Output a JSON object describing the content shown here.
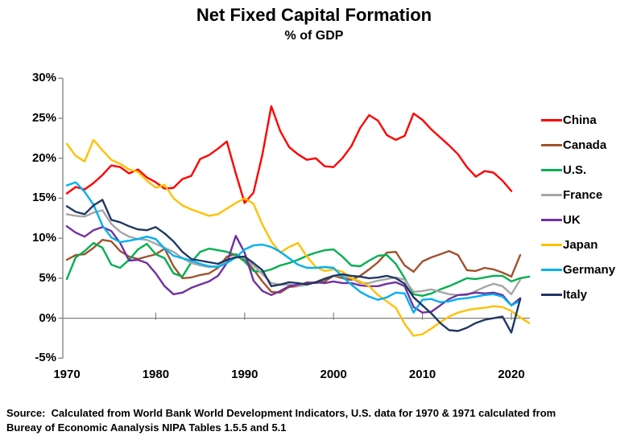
{
  "chart_data": {
    "type": "line",
    "title": "Net Fixed Capital Formation",
    "subtitle": "% of GDP",
    "legend_position": "right",
    "grid": "zero-line-only",
    "axis_color": "#808080",
    "x_axis": {
      "tick_labels": [
        "1970",
        "1980",
        "1990",
        "2000",
        "2010",
        "2020"
      ],
      "tick_years": [
        1970,
        1980,
        1990,
        2000,
        2010,
        2020
      ],
      "range_years": [
        1970,
        2022
      ]
    },
    "y_axis": {
      "tick_labels": [
        "30%",
        "25%",
        "20%",
        "15%",
        "10%",
        "5%",
        "0%",
        "-5%"
      ],
      "tick_values": [
        30,
        25,
        20,
        15,
        10,
        5,
        0,
        -5
      ],
      "range": [
        -5,
        30
      ],
      "unit": "percent"
    },
    "series": [
      {
        "name": "China",
        "key": "china",
        "color": "#FF0000",
        "start_year": 1970,
        "values": [
          15.6,
          16.4,
          16.1,
          16.9,
          17.9,
          19.1,
          18.9,
          18.1,
          18.6,
          17.6,
          17.0,
          16.2,
          16.3,
          17.4,
          17.8,
          19.9,
          20.4,
          21.2,
          22.1,
          18.1,
          14.4,
          15.7,
          20.5,
          26.5,
          23.4,
          21.4,
          20.5,
          19.8,
          20.0,
          19.0,
          18.9,
          20.0,
          21.5,
          23.8,
          25.4,
          24.7,
          22.9,
          22.3,
          22.8,
          25.6,
          24.8,
          23.6,
          22.6,
          21.6,
          20.5,
          18.9,
          17.7,
          18.4,
          18.2,
          17.2,
          15.9
        ]
      },
      {
        "name": "Canada",
        "key": "canada",
        "color": "#A0522D",
        "start_year": 1970,
        "values": [
          7.3,
          7.9,
          8.0,
          8.8,
          9.8,
          9.6,
          8.4,
          7.7,
          7.4,
          7.7,
          8.0,
          8.7,
          6.5,
          5.0,
          5.1,
          5.4,
          5.6,
          6.3,
          7.7,
          8.0,
          7.4,
          6.1,
          4.6,
          3.3,
          3.2,
          3.9,
          4.0,
          4.5,
          4.4,
          4.6,
          5.3,
          5.0,
          4.8,
          5.3,
          6.1,
          7.0,
          8.2,
          8.3,
          6.6,
          5.8,
          7.1,
          7.6,
          8.0,
          8.4,
          7.9,
          6.0,
          5.9,
          6.3,
          6.1,
          5.7,
          5.2,
          7.9
        ]
      },
      {
        "name": "U.S.",
        "key": "us",
        "color": "#00B050",
        "start_year": 1970,
        "values": [
          4.9,
          7.6,
          8.4,
          9.4,
          8.8,
          6.7,
          6.3,
          7.3,
          8.6,
          9.3,
          8.0,
          7.5,
          5.6,
          5.2,
          7.0,
          8.3,
          8.7,
          8.5,
          8.3,
          7.9,
          7.1,
          5.9,
          5.8,
          6.1,
          6.6,
          6.9,
          7.3,
          7.8,
          8.2,
          8.5,
          8.6,
          7.7,
          6.6,
          6.5,
          7.2,
          7.8,
          7.9,
          6.8,
          5.0,
          3.0,
          2.8,
          3.1,
          3.6,
          4.0,
          4.5,
          5.0,
          4.9,
          5.1,
          5.3,
          5.3,
          4.6,
          5.0,
          5.2
        ]
      },
      {
        "name": "France",
        "key": "france",
        "color": "#A6A6A6",
        "start_year": 1970,
        "values": [
          13.0,
          12.8,
          12.7,
          13.2,
          13.5,
          11.8,
          10.8,
          10.2,
          9.9,
          9.8,
          9.3,
          8.8,
          8.3,
          7.5,
          6.9,
          6.6,
          6.4,
          6.5,
          7.2,
          7.7,
          7.5,
          6.6,
          5.5,
          4.4,
          4.2,
          4.2,
          4.0,
          4.2,
          4.5,
          5.0,
          5.3,
          5.3,
          5.0,
          4.4,
          4.4,
          4.7,
          4.9,
          5.1,
          4.8,
          3.3,
          3.4,
          3.6,
          3.3,
          3.0,
          2.9,
          2.9,
          3.4,
          3.9,
          4.3,
          4.0,
          3.0,
          4.8
        ]
      },
      {
        "name": "UK",
        "key": "uk",
        "color": "#7030A0",
        "start_year": 1970,
        "values": [
          11.5,
          10.7,
          10.2,
          11.0,
          11.4,
          10.9,
          9.4,
          7.2,
          7.3,
          6.9,
          5.6,
          4.0,
          3.0,
          3.2,
          3.8,
          4.2,
          4.6,
          5.3,
          6.9,
          10.3,
          8.2,
          4.7,
          3.4,
          2.9,
          3.4,
          4.0,
          4.2,
          4.4,
          4.5,
          4.4,
          4.6,
          4.4,
          4.4,
          4.1,
          4.0,
          4.0,
          4.3,
          4.5,
          4.0,
          1.4,
          0.7,
          0.8,
          1.6,
          2.4,
          2.9,
          3.0,
          3.2,
          3.1,
          3.2,
          2.9,
          1.6,
          2.5
        ]
      },
      {
        "name": "Japan",
        "key": "japan",
        "color": "#FFC000",
        "start_year": 1970,
        "values": [
          21.8,
          20.3,
          19.6,
          22.3,
          21.0,
          19.8,
          19.3,
          18.6,
          18.3,
          17.2,
          16.3,
          16.7,
          15.0,
          14.1,
          13.6,
          13.2,
          12.8,
          13.0,
          13.7,
          14.4,
          15.0,
          14.3,
          11.7,
          9.6,
          8.2,
          8.9,
          9.4,
          7.7,
          6.4,
          5.9,
          6.1,
          5.8,
          5.0,
          4.6,
          4.0,
          2.9,
          2.1,
          1.3,
          -0.7,
          -2.2,
          -2.0,
          -1.3,
          -0.5,
          0.2,
          0.7,
          1.0,
          1.2,
          1.3,
          1.5,
          1.4,
          0.9,
          0.1,
          -0.6
        ]
      },
      {
        "name": "Germany",
        "key": "germany",
        "color": "#00B0F0",
        "start_year": 1970,
        "values": [
          16.6,
          17.0,
          15.8,
          14.2,
          11.6,
          10.1,
          9.5,
          9.7,
          9.9,
          10.2,
          9.9,
          8.7,
          7.8,
          7.5,
          7.2,
          6.8,
          6.5,
          6.4,
          6.9,
          7.6,
          8.6,
          9.1,
          9.2,
          8.9,
          8.3,
          7.5,
          6.7,
          6.3,
          6.3,
          6.4,
          6.3,
          5.2,
          4.2,
          3.3,
          2.7,
          2.3,
          2.6,
          3.2,
          3.1,
          0.7,
          2.3,
          2.4,
          2.0,
          2.1,
          2.4,
          2.5,
          2.7,
          2.9,
          3.0,
          2.7,
          1.6,
          2.2
        ]
      },
      {
        "name": "Italy",
        "key": "italy",
        "color": "#203864",
        "start_year": 1970,
        "values": [
          14.0,
          13.3,
          13.0,
          14.1,
          14.8,
          12.3,
          12.0,
          11.5,
          11.1,
          11.0,
          11.4,
          10.6,
          9.6,
          8.3,
          7.4,
          7.2,
          7.0,
          6.8,
          7.3,
          7.6,
          7.7,
          6.9,
          6.0,
          4.0,
          4.2,
          4.5,
          4.4,
          4.2,
          4.5,
          4.9,
          5.3,
          5.5,
          5.3,
          5.2,
          5.0,
          5.1,
          5.3,
          5.0,
          4.3,
          2.6,
          1.6,
          0.6,
          -0.6,
          -1.5,
          -1.6,
          -1.2,
          -0.6,
          -0.2,
          0.0,
          0.2,
          -1.8,
          2.4
        ]
      }
    ]
  },
  "source": {
    "line1": "Source:  Calculated from World Bank World Development Indicators, U.S. data for 1970 & 1971 calculated from",
    "line2": "Bureay of Economic Aanalysis NIPA Tables 1.5.5 and 5.1"
  }
}
